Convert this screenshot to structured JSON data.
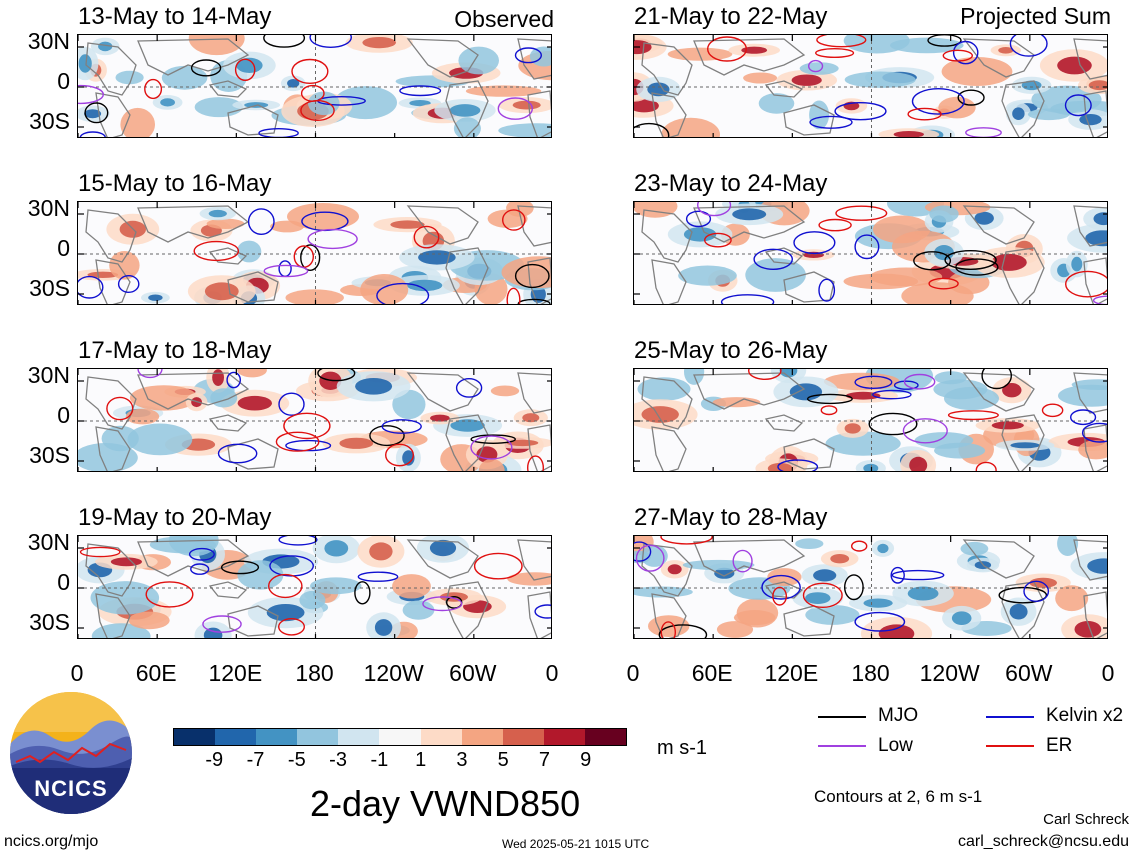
{
  "chart_data": {
    "type": "heatmap",
    "variable": "2-day VWND850",
    "units": "m s-1",
    "colorbar": {
      "ticks": [
        "-9",
        "-7",
        "-5",
        "-3",
        "-1",
        "1",
        "3",
        "5",
        "7",
        "9"
      ],
      "colors": [
        "#08306b",
        "#2166ac",
        "#4393c3",
        "#92c5de",
        "#d1e5f0",
        "#f7f7f7",
        "#fddbc7",
        "#f4a582",
        "#d6604d",
        "#b2182b",
        "#67001f"
      ]
    },
    "xticks": [
      "0",
      "60E",
      "120E",
      "180",
      "120W",
      "60W",
      "0"
    ],
    "yticks": [
      "30N",
      "0",
      "30S"
    ],
    "legend": [
      {
        "label": "MJO",
        "color": "#000000"
      },
      {
        "label": "Kelvin x2",
        "color": "#1010d0"
      },
      {
        "label": "Low",
        "color": "#a040e0"
      },
      {
        "label": "ER",
        "color": "#e01010"
      }
    ],
    "contour_note": "Contours at 2, 6 m s-1",
    "left_column_label": "Observed",
    "right_column_label": "Projected Sum",
    "panels_left": [
      "13-May to 14-May",
      "15-May to 16-May",
      "17-May to 18-May",
      "19-May to 20-May"
    ],
    "panels_right": [
      "21-May to 22-May",
      "23-May to 24-May",
      "25-May to 26-May",
      "27-May to 28-May"
    ]
  },
  "footer": {
    "site": "ncics.org/mjo",
    "timestamp": "Wed 2025-05-21 1015 UTC",
    "author": "Carl Schreck",
    "email": "carl_schreck@ncsu.edu",
    "logo_text": "NCICS"
  }
}
